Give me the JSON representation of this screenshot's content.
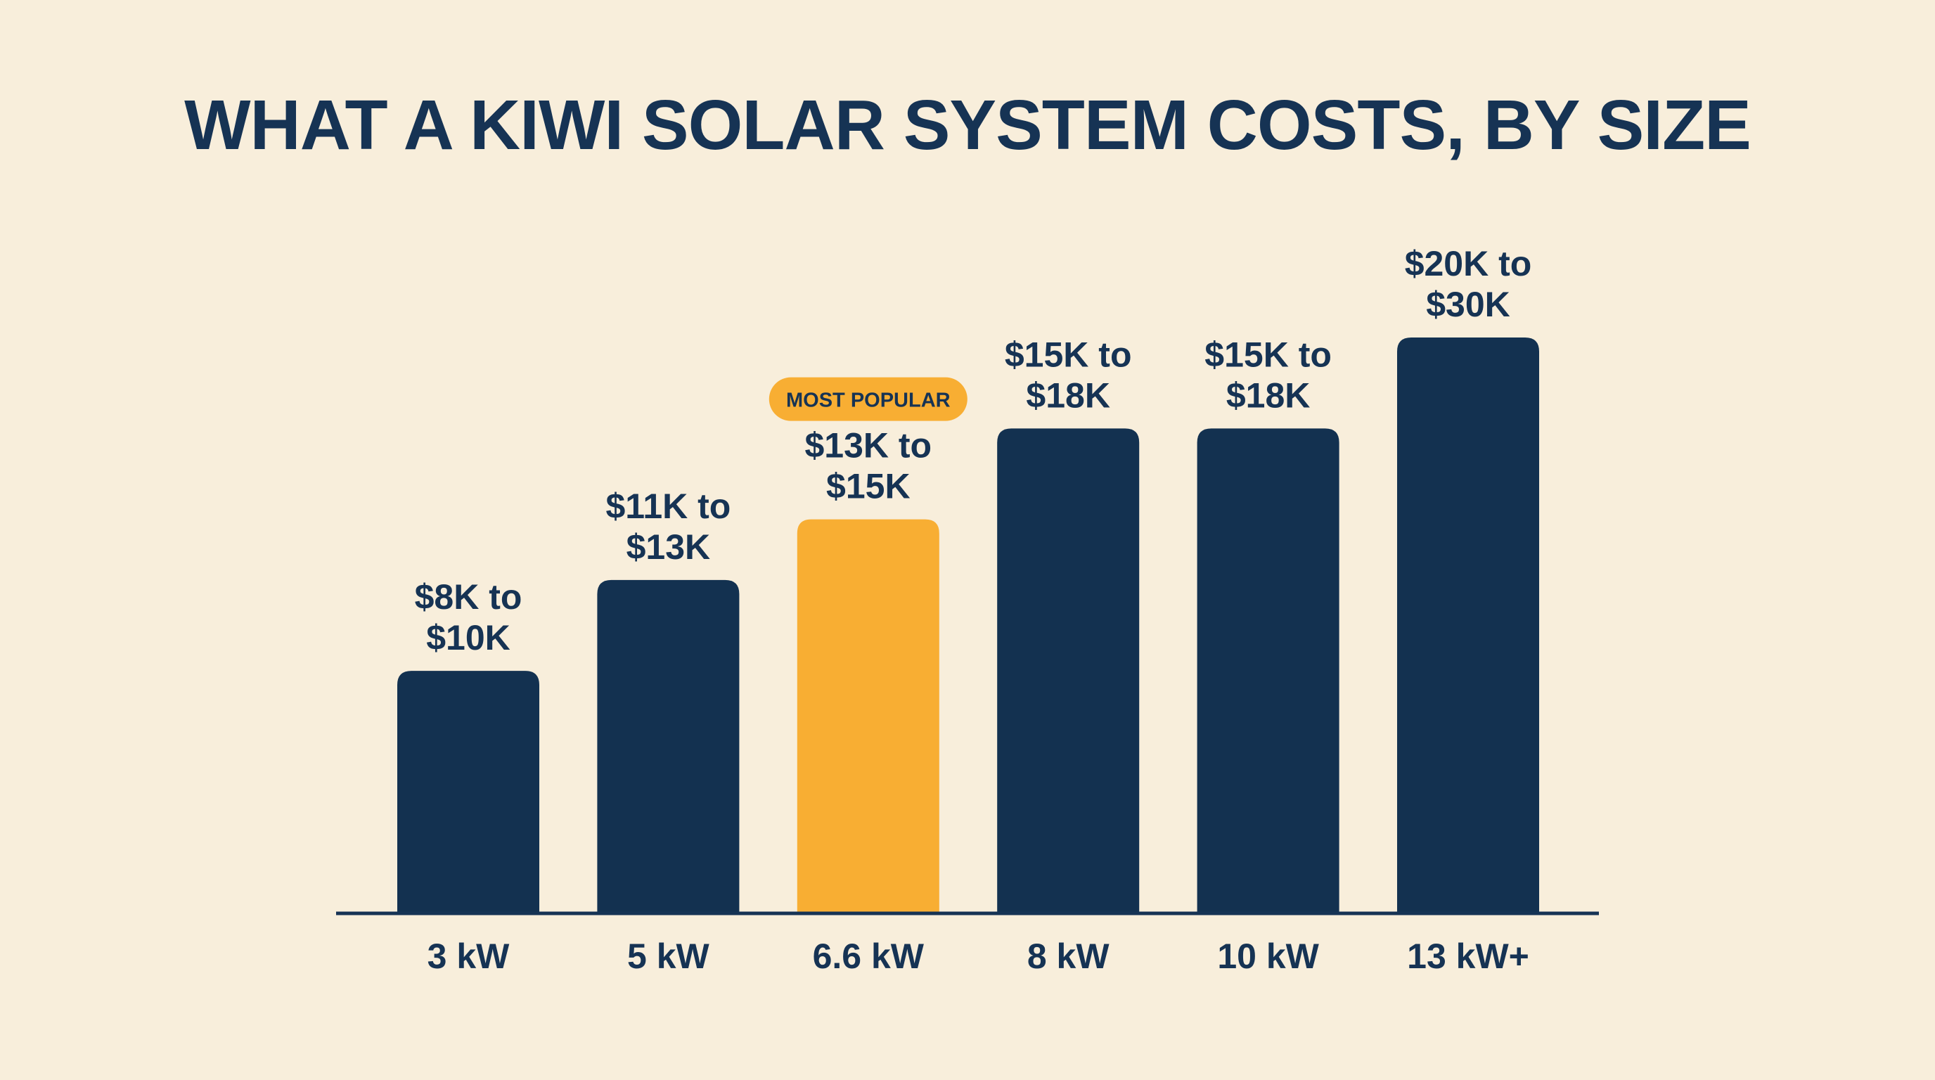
{
  "chart_data": {
    "type": "bar",
    "title": "WHAT A KIWI SOLAR SYSTEM COSTS, BY SIZE",
    "xlabel": "",
    "ylabel": "",
    "grid": false,
    "categories": [
      "3 kW",
      "5 kW",
      "6.6 kW",
      "8 kW",
      "10 kW",
      "13 kW+"
    ],
    "value_labels": [
      [
        "$8K to",
        "$10K"
      ],
      [
        "$11K to",
        "$13K"
      ],
      [
        "$13K to",
        "$15K"
      ],
      [
        "$15K to",
        "$18K"
      ],
      [
        "$15K to",
        "$18K"
      ],
      [
        "$20K to",
        "$30K"
      ]
    ],
    "ranges": [
      [
        8,
        10
      ],
      [
        11,
        13
      ],
      [
        13,
        15
      ],
      [
        15,
        18
      ],
      [
        15,
        18
      ],
      [
        20,
        30
      ]
    ],
    "values": [
      8,
      11,
      13,
      16,
      16,
      19
    ],
    "unit": "$K",
    "ylim": [
      0,
      19
    ],
    "highlight_index": 2,
    "highlight_badge": "MOST POPULAR",
    "colors": {
      "background": "#f8eedb",
      "bar": "#133150",
      "highlight": "#f8ae33",
      "text": "#163354",
      "axis": "#163354"
    }
  }
}
